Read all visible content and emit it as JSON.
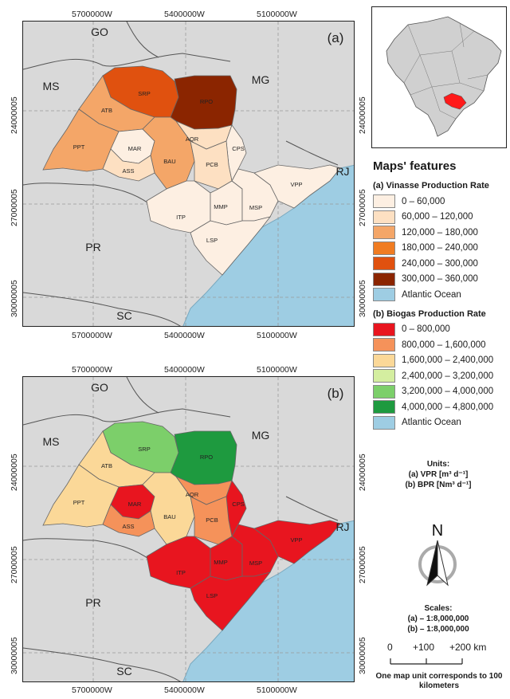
{
  "map_a": {
    "panel_label": "(a)",
    "coords_top": [
      "5700000W",
      "5400000W",
      "5100000W"
    ],
    "coords_bottom": [
      "5700000W",
      "5400000W",
      "5100000W"
    ],
    "coords_left": [
      "24000005",
      "27000005",
      "30000005"
    ],
    "coords_right": [
      "24000005",
      "27000005",
      "30000005"
    ],
    "labels": {
      "go": "GO",
      "ms": "MS",
      "mg": "MG",
      "rj": "RJ",
      "pr": "PR",
      "sc": "SC"
    },
    "regions": [
      {
        "code": "SRP",
        "fill": "#e0510f"
      },
      {
        "code": "RPO",
        "fill": "#8b2500"
      },
      {
        "code": "ATB",
        "fill": "#f4a668"
      },
      {
        "code": "PPT",
        "fill": "#f4a668"
      },
      {
        "code": "MAR",
        "fill": "#fdefe2"
      },
      {
        "code": "BAU",
        "fill": "#f4a668"
      },
      {
        "code": "ASS",
        "fill": "#fde0c2"
      },
      {
        "code": "AQR",
        "fill": "#fde0c2"
      },
      {
        "code": "CPS",
        "fill": "#fdefe2"
      },
      {
        "code": "PCB",
        "fill": "#fde0c2"
      },
      {
        "code": "ITP",
        "fill": "#fdefe2"
      },
      {
        "code": "MMP",
        "fill": "#fdefe2"
      },
      {
        "code": "MSP",
        "fill": "#fdefe2"
      },
      {
        "code": "VPP",
        "fill": "#fdefe2"
      },
      {
        "code": "LSP",
        "fill": "#fdefe2"
      }
    ]
  },
  "map_b": {
    "panel_label": "(b)",
    "coords_top": [
      "5700000W",
      "5400000W",
      "5100000W"
    ],
    "coords_bottom": [
      "5700000W",
      "5400000W",
      "5100000W"
    ],
    "coords_left": [
      "24000005",
      "27000005",
      "30000005"
    ],
    "coords_right": [
      "24000005",
      "27000005",
      "30000005"
    ],
    "labels": {
      "go": "GO",
      "ms": "MS",
      "mg": "MG",
      "rj": "RJ",
      "pr": "PR",
      "sc": "SC"
    },
    "regions": [
      {
        "code": "SRP",
        "fill": "#7ccf6a"
      },
      {
        "code": "RPO",
        "fill": "#1e9a3f"
      },
      {
        "code": "ATB",
        "fill": "#fbd898"
      },
      {
        "code": "PPT",
        "fill": "#fbd898"
      },
      {
        "code": "MAR",
        "fill": "#e8151f"
      },
      {
        "code": "BAU",
        "fill": "#fbd898"
      },
      {
        "code": "ASS",
        "fill": "#f5925a"
      },
      {
        "code": "AQR",
        "fill": "#f5925a"
      },
      {
        "code": "CPS",
        "fill": "#e8151f"
      },
      {
        "code": "PCB",
        "fill": "#f5925a"
      },
      {
        "code": "ITP",
        "fill": "#e8151f"
      },
      {
        "code": "MMP",
        "fill": "#e8151f"
      },
      {
        "code": "MSP",
        "fill": "#e8151f"
      },
      {
        "code": "VPP",
        "fill": "#e8151f"
      },
      {
        "code": "LSP",
        "fill": "#e8151f"
      }
    ]
  },
  "colors": {
    "ocean": "#9ecde3",
    "land": "#d9d9d9",
    "border": "#444444",
    "highlight": "#ff1a1a"
  },
  "legend": {
    "title": "Maps' features",
    "vinasse_title": "(a) Vinasse Production Rate",
    "vinasse_items": [
      {
        "label": "0 – 60,000",
        "color": "#fdefe2"
      },
      {
        "label": "60,000 – 120,000",
        "color": "#fde0c2"
      },
      {
        "label": "120,000 – 180,000",
        "color": "#f4a668"
      },
      {
        "label": "180,000 – 240,000",
        "color": "#f07c22"
      },
      {
        "label": "240,000 – 300,000",
        "color": "#e0510f"
      },
      {
        "label": "300,000 – 360,000",
        "color": "#8b2500"
      },
      {
        "label": "Atlantic Ocean",
        "color": "#9ecde3"
      }
    ],
    "biogas_title": "(b) Biogas Production Rate",
    "biogas_items": [
      {
        "label": "0 – 800,000",
        "color": "#e8151f"
      },
      {
        "label": "800,000 – 1,600,000",
        "color": "#f5925a"
      },
      {
        "label": "1,600,000 – 2,400,000",
        "color": "#fbd898"
      },
      {
        "label": "2,400,000 – 3,200,000",
        "color": "#d4eea0"
      },
      {
        "label": "3,200,000 – 4,000,000",
        "color": "#7ccf6a"
      },
      {
        "label": "4,000,000 – 4,800,000",
        "color": "#1e9a3f"
      },
      {
        "label": "Atlantic Ocean",
        "color": "#9ecde3"
      }
    ]
  },
  "units": {
    "title": "Units:",
    "a": "(a) VPR [m³ d⁻¹]",
    "b": "(b) BPR [Nm³ d⁻¹]"
  },
  "north": "N",
  "scales": {
    "title": "Scales:",
    "a": "(a) – 1:8,000,000",
    "b": "(b) – 1:8,000,000"
  },
  "scalebar": {
    "labels": [
      "0",
      "+100",
      "+200 km"
    ],
    "note": "One map unit corresponds to 100 kilometers"
  }
}
